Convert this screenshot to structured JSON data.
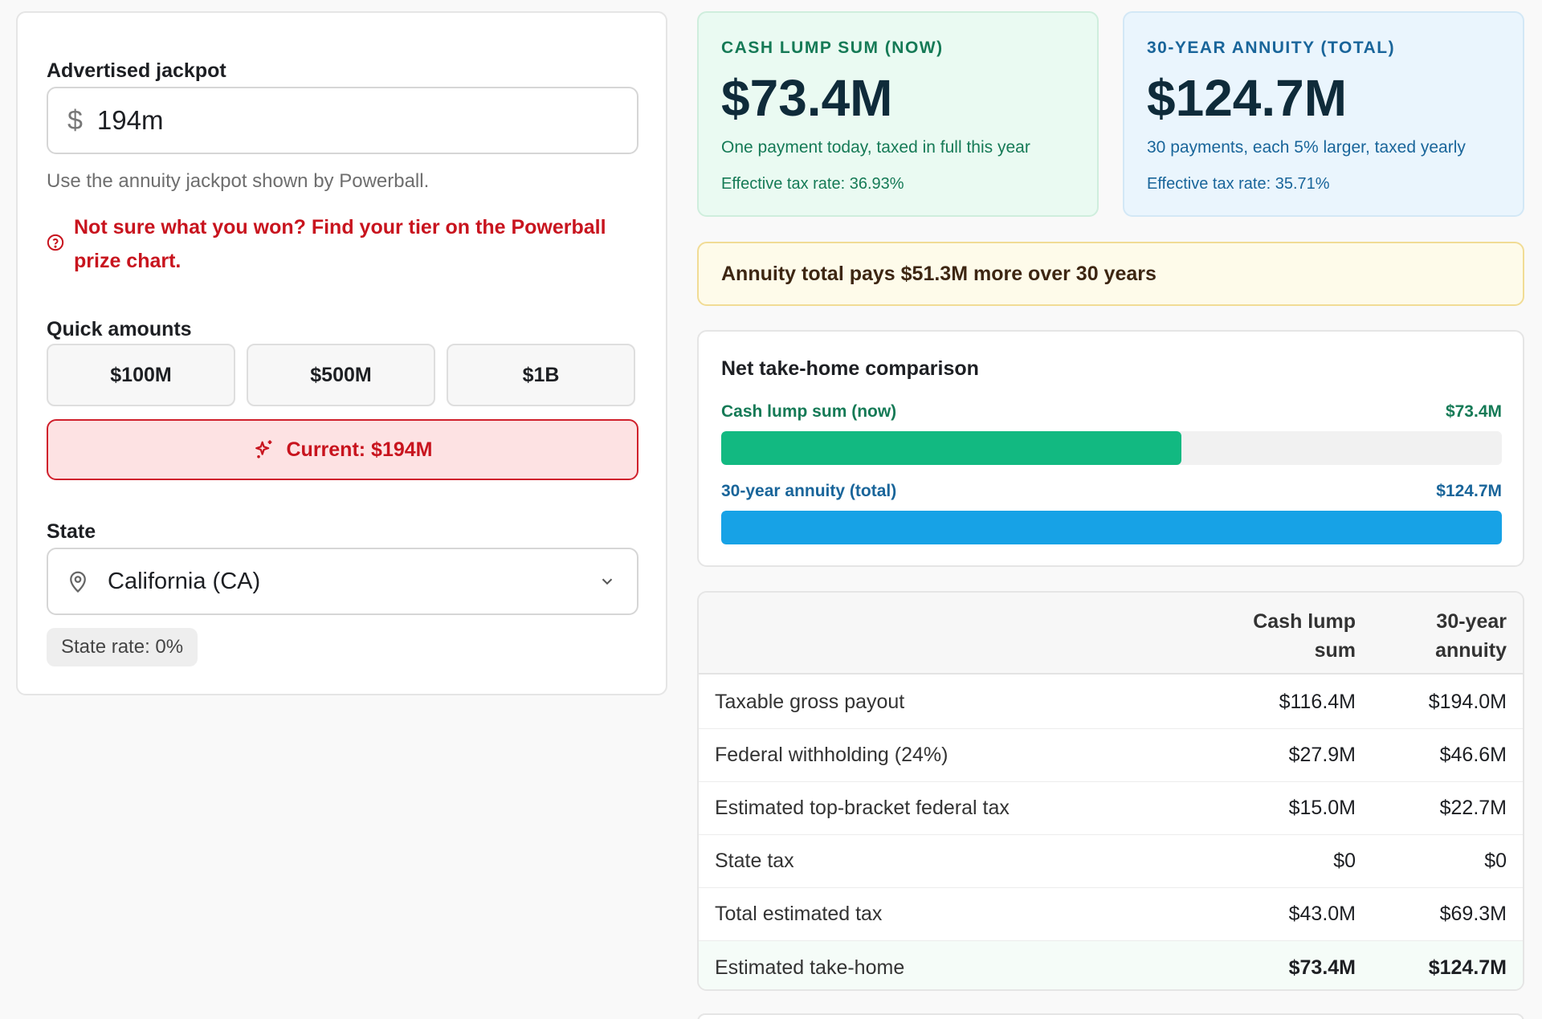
{
  "jackpot": {
    "label": "Advertised jackpot",
    "currency_symbol": "$",
    "value": "194m",
    "hint": "Use the annuity jackpot shown by Powerball.",
    "prize_link": "Not sure what you won? Find your tier on the Powerball prize chart."
  },
  "quick": {
    "label": "Quick amounts",
    "buttons": [
      "$100M",
      "$500M",
      "$1B"
    ],
    "current": "Current: $194M"
  },
  "state": {
    "label": "State",
    "selected": "California (CA)",
    "rate": "State rate: 0%"
  },
  "cash_card": {
    "title": "CASH LUMP SUM (NOW)",
    "amount": "$73.4M",
    "description": "One payment today, taxed in full this year",
    "rate": "Effective tax rate: 36.93%"
  },
  "annuity_card": {
    "title": "30-YEAR ANNUITY (TOTAL)",
    "amount": "$124.7M",
    "description": "30 payments, each 5% larger, taxed yearly",
    "rate": "Effective tax rate: 35.71%"
  },
  "banner": "Annuity total pays $51.3M more over 30 years",
  "comparison": {
    "title": "Net take-home comparison",
    "bars": [
      {
        "label": "Cash lump sum (now)",
        "value_text": "$73.4M",
        "fraction": 0.589,
        "color": "#12b981"
      },
      {
        "label": "30-year annuity (total)",
        "value_text": "$124.7M",
        "fraction": 1.0,
        "color": "#17a2e6"
      }
    ]
  },
  "table": {
    "headers": [
      "",
      "Cash lump sum",
      "30-year annuity"
    ],
    "rows": [
      [
        "Taxable gross payout",
        "$116.4M",
        "$194.0M"
      ],
      [
        "Federal withholding (24%)",
        "$27.9M",
        "$46.6M"
      ],
      [
        "Estimated top-bracket federal tax",
        "$15.0M",
        "$22.7M"
      ],
      [
        "State tax",
        "$0",
        "$0"
      ],
      [
        "Total estimated tax",
        "$43.0M",
        "$69.3M"
      ],
      [
        "Estimated take-home",
        "$73.4M",
        "$124.7M"
      ]
    ]
  },
  "colors": {
    "accent_red": "#c8141e",
    "cash_green": "#157a56",
    "annuity_blue": "#19659a"
  }
}
